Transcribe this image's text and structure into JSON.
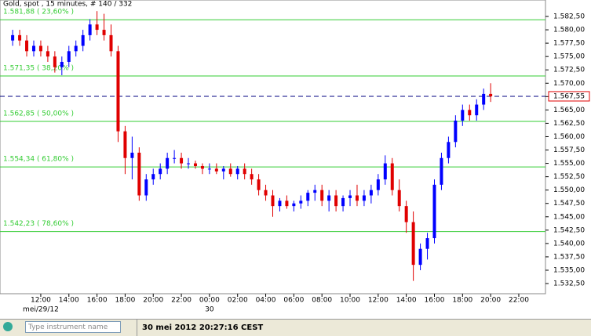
{
  "chart_data": {
    "type": "candlestick",
    "title": "Gold, spot , 15 minutes, # 140 / 332",
    "x": [
      10,
      10.5,
      11,
      11.5,
      12,
      12.5,
      13,
      13.5,
      14,
      14.5,
      15,
      15.5,
      16,
      16.5,
      17,
      17.5,
      18,
      18.5,
      19,
      19.5,
      20,
      20.5,
      21,
      21.5,
      22,
      22.5,
      23,
      23.5,
      24,
      24.5,
      25,
      25.5,
      26,
      26.5,
      27,
      27.5,
      28,
      28.5,
      29,
      29.5,
      30,
      30.5,
      31,
      31.5,
      32,
      32.5,
      33,
      33.5,
      34,
      34.5,
      35,
      35.5,
      36,
      36.5,
      37,
      37.5,
      38,
      38.5,
      39,
      39.5,
      40,
      40.5,
      41,
      41.5,
      42,
      42.5,
      43,
      43.5,
      44
    ],
    "open": [
      1578,
      1579,
      1578,
      1576,
      1577,
      1576,
      1575,
      1573,
      1574,
      1576,
      1577,
      1579,
      1581,
      1580,
      1579,
      1576,
      1561,
      1556,
      1557,
      1549,
      1552,
      1553,
      1554,
      1556,
      1556,
      1555,
      1555,
      1554.5,
      1554,
      1554,
      1553.5,
      1554,
      1553,
      1554,
      1553,
      1552,
      1550,
      1549,
      1547,
      1548,
      1547,
      1547.5,
      1548,
      1549.5,
      1550,
      1548,
      1549,
      1547,
      1548.5,
      1549,
      1548,
      1549,
      1550,
      1552,
      1555,
      1550,
      1547,
      1544,
      1536,
      1539,
      1541,
      1551,
      1556,
      1559,
      1563,
      1565,
      1564,
      1566,
      1568
    ],
    "high": [
      1580,
      1580,
      1579,
      1578,
      1578,
      1577,
      1576,
      1575,
      1577,
      1578,
      1580,
      1582,
      1583.5,
      1583,
      1581,
      1577,
      1562,
      1560,
      1558,
      1553,
      1554,
      1555,
      1557,
      1557.5,
      1557,
      1556,
      1555.5,
      1555,
      1555,
      1555,
      1554.5,
      1555,
      1554.5,
      1555,
      1554,
      1553,
      1551,
      1550,
      1548.5,
      1549,
      1548,
      1549,
      1550,
      1551,
      1551,
      1550,
      1550,
      1549,
      1550,
      1551,
      1550,
      1551,
      1553,
      1556.5,
      1556,
      1552,
      1548,
      1546,
      1540,
      1542,
      1552,
      1557,
      1560,
      1564,
      1566,
      1566,
      1567,
      1569,
      1570
    ],
    "low": [
      1577,
      1577,
      1575,
      1575,
      1575,
      1574,
      1572,
      1571.5,
      1573,
      1575,
      1576,
      1578,
      1579,
      1578,
      1575,
      1559,
      1553,
      1552,
      1548,
      1548,
      1551,
      1552,
      1553,
      1555,
      1554,
      1554,
      1554,
      1553,
      1553,
      1553,
      1552,
      1552.5,
      1552,
      1552,
      1551,
      1549,
      1548,
      1545,
      1546,
      1546.5,
      1546,
      1546.5,
      1547,
      1548,
      1547,
      1546,
      1546,
      1546,
      1547,
      1547,
      1547,
      1547.5,
      1549,
      1551,
      1549,
      1546,
      1542,
      1533,
      1535,
      1537,
      1540,
      1550,
      1555,
      1558,
      1562,
      1563,
      1563,
      1565,
      1566.5
    ],
    "close": [
      1579,
      1578,
      1576,
      1577,
      1576,
      1575,
      1573,
      1574,
      1576,
      1577,
      1579,
      1581,
      1580,
      1579,
      1576,
      1561,
      1556,
      1557,
      1549,
      1552,
      1553,
      1554,
      1556,
      1556,
      1555,
      1555,
      1554.5,
      1554,
      1554,
      1553.5,
      1554,
      1553,
      1554,
      1553,
      1552,
      1550,
      1549,
      1547,
      1548,
      1547,
      1547.5,
      1548,
      1549.5,
      1550,
      1548,
      1549,
      1547,
      1548.5,
      1549,
      1548,
      1549,
      1550,
      1552,
      1555,
      1550,
      1547,
      1544,
      1536,
      1539,
      1541,
      1551,
      1556,
      1559,
      1563,
      1565,
      1564,
      1566,
      1568,
      1567.55
    ],
    "up_color": "#0000ff",
    "down_color": "#e00000",
    "grid": false,
    "xlim": [
      9.1,
      47.9
    ],
    "xticks": [
      {
        "value": 12,
        "label": "12:00"
      },
      {
        "value": 14,
        "label": "14:00"
      },
      {
        "value": 16,
        "label": "16:00"
      },
      {
        "value": 18,
        "label": "18:00"
      },
      {
        "value": 20,
        "label": "20:00"
      },
      {
        "value": 22,
        "label": "22:00"
      },
      {
        "value": 24,
        "label": "00:00"
      },
      {
        "value": 26,
        "label": "02:00"
      },
      {
        "value": 28,
        "label": "04:00"
      },
      {
        "value": 30,
        "label": "06:00"
      },
      {
        "value": 32,
        "label": "08:00"
      },
      {
        "value": 34,
        "label": "10:00"
      },
      {
        "value": 36,
        "label": "12:00"
      },
      {
        "value": 38,
        "label": "14:00"
      },
      {
        "value": 40,
        "label": "16:00"
      },
      {
        "value": 42,
        "label": "18:00"
      },
      {
        "value": 44,
        "label": "20:00"
      },
      {
        "value": 46,
        "label": "22:00"
      }
    ],
    "date_labels": [
      {
        "value": 12,
        "label": "mei/29/12"
      },
      {
        "value": 24,
        "label": "30"
      }
    ],
    "ylim": [
      1530.6,
      1585.58
    ],
    "yticks": [
      {
        "value": 1532.5,
        "label": "1.532,50"
      },
      {
        "value": 1535,
        "label": "1.535,00"
      },
      {
        "value": 1537.5,
        "label": "1.537,50"
      },
      {
        "value": 1540,
        "label": "1.540,00"
      },
      {
        "value": 1542.5,
        "label": "1.542,50"
      },
      {
        "value": 1545,
        "label": "1.545,00"
      },
      {
        "value": 1547.5,
        "label": "1.547,50"
      },
      {
        "value": 1550,
        "label": "1.550,00"
      },
      {
        "value": 1552.5,
        "label": "1.552,50"
      },
      {
        "value": 1555,
        "label": "1.555,00"
      },
      {
        "value": 1557.5,
        "label": "1.557,50"
      },
      {
        "value": 1560,
        "label": "1.560,00"
      },
      {
        "value": 1562.5,
        "label": "1.562,50"
      },
      {
        "value": 1565,
        "label": "1.565,00"
      },
      {
        "value": 1567.5,
        "label": "1.567,50"
      },
      {
        "value": 1570,
        "label": "1.570,00"
      },
      {
        "value": 1572.5,
        "label": "1.572,50"
      },
      {
        "value": 1575,
        "label": "1.575,00"
      },
      {
        "value": 1577.5,
        "label": "1.577,50"
      },
      {
        "value": 1580,
        "label": "1.580,00"
      },
      {
        "value": 1582.5,
        "label": "1.582,50"
      }
    ],
    "fib_levels": [
      {
        "value": 1581.88,
        "label": "1.581,88 ( 23,60% )"
      },
      {
        "value": 1571.35,
        "label": "1.571,35 ( 38,20% )"
      },
      {
        "value": 1562.85,
        "label": "1.562,85 ( 50,00% )"
      },
      {
        "value": 1554.34,
        "label": "1.554,34 ( 61,80% )"
      },
      {
        "value": 1542.23,
        "label": "1.542,23 ( 78,60% )"
      }
    ],
    "fib_color": "#33cc33",
    "current_price": {
      "value": 1567.55,
      "label": "1.567,55"
    }
  },
  "status_bar": {
    "search_placeholder": "Type instrument name",
    "timestamp": "30 mei 2012 20:27:16 CEST"
  }
}
